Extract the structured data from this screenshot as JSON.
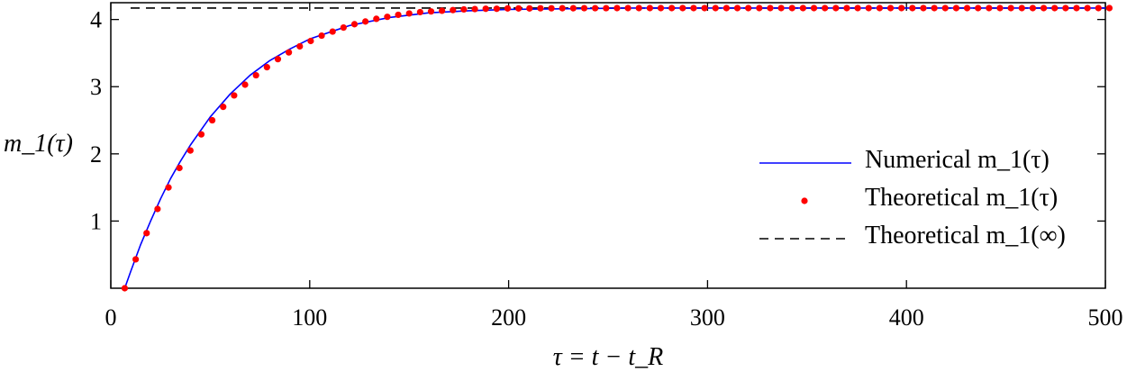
{
  "chart_data": {
    "type": "line",
    "xlabel": "τ = t − t_R",
    "ylabel": "m_1(τ)",
    "xlim": [
      0,
      500
    ],
    "ylim": [
      0,
      4.25
    ],
    "x_ticks": [
      "0",
      "100",
      "200",
      "300",
      "400",
      "500"
    ],
    "y_ticks": [
      "1",
      "2",
      "3",
      "4"
    ],
    "grid": false,
    "legend_position": "middle-right",
    "asymptote": 4.17,
    "time_constant": 50,
    "t0": 7,
    "series": [
      {
        "name": "Numerical m_1(τ)",
        "style": "solid-line",
        "color": "#0000ff",
        "x": [
          7,
          10,
          15,
          20,
          25,
          30,
          35,
          40,
          50,
          60,
          70,
          80,
          90,
          100,
          120,
          140,
          160,
          180,
          200,
          230,
          260,
          300,
          350,
          400,
          450,
          500
        ],
        "values": [
          0,
          0.25,
          0.65,
          1.0,
          1.33,
          1.63,
          1.89,
          2.13,
          2.55,
          2.89,
          3.17,
          3.39,
          3.56,
          3.71,
          3.91,
          4.03,
          4.1,
          4.13,
          4.15,
          4.16,
          4.17,
          4.17,
          4.17,
          4.17,
          4.17,
          4.17
        ]
      },
      {
        "name": "Theoretical m_1(τ)",
        "style": "dots",
        "color": "#ff0000",
        "x": [
          7,
          12.5,
          18,
          23.5,
          29,
          34.5,
          40,
          45.5,
          51,
          56.5,
          62,
          67.5,
          73,
          78.5,
          84,
          89.5,
          95,
          100.5,
          106,
          111.5,
          117,
          122.5,
          128,
          133.5,
          139,
          144.5,
          150,
          155.5,
          161,
          166.5,
          172,
          177.5,
          183,
          188.5,
          194,
          199.5,
          205,
          210.5,
          216,
          221.5,
          227,
          232.5,
          238,
          243.5,
          249,
          254.5,
          260,
          265.5,
          271,
          276.5,
          282,
          287.5,
          293,
          298.5,
          304,
          309.5,
          315,
          320.5,
          326,
          331.5,
          337,
          342.5,
          348,
          353.5,
          359,
          364.5,
          370,
          375.5,
          381,
          386.5,
          392,
          397.5,
          403,
          408.5,
          414,
          419.5,
          425,
          430.5,
          436,
          441.5,
          447,
          452.5,
          458,
          463.5,
          469,
          474.5,
          480,
          485.5,
          491,
          496.5,
          502
        ],
        "values": [
          0,
          0.43,
          0.82,
          1.18,
          1.5,
          1.79,
          2.05,
          2.29,
          2.5,
          2.7,
          2.87,
          3.03,
          3.17,
          3.29,
          3.41,
          3.51,
          3.6,
          3.68,
          3.76,
          3.82,
          3.88,
          3.93,
          3.97,
          4.01,
          4.04,
          4.07,
          4.09,
          4.11,
          4.12,
          4.13,
          4.14,
          4.15,
          4.155,
          4.16,
          4.16,
          4.165,
          4.165,
          4.165,
          4.167,
          4.167,
          4.168,
          4.168,
          4.169,
          4.169,
          4.169,
          4.17,
          4.17,
          4.17,
          4.17,
          4.17,
          4.17,
          4.17,
          4.17,
          4.17,
          4.17,
          4.17,
          4.17,
          4.17,
          4.17,
          4.17,
          4.17,
          4.17,
          4.17,
          4.17,
          4.17,
          4.17,
          4.17,
          4.17,
          4.17,
          4.17,
          4.17,
          4.17,
          4.17,
          4.17,
          4.17,
          4.17,
          4.17,
          4.17,
          4.17,
          4.17,
          4.17,
          4.17,
          4.17,
          4.17,
          4.17,
          4.17,
          4.17,
          4.17,
          4.17,
          4.17,
          4.17
        ]
      },
      {
        "name": "Theoretical m_1(∞)",
        "style": "dashed-line",
        "color": "#000000",
        "value": 4.17
      }
    ]
  }
}
